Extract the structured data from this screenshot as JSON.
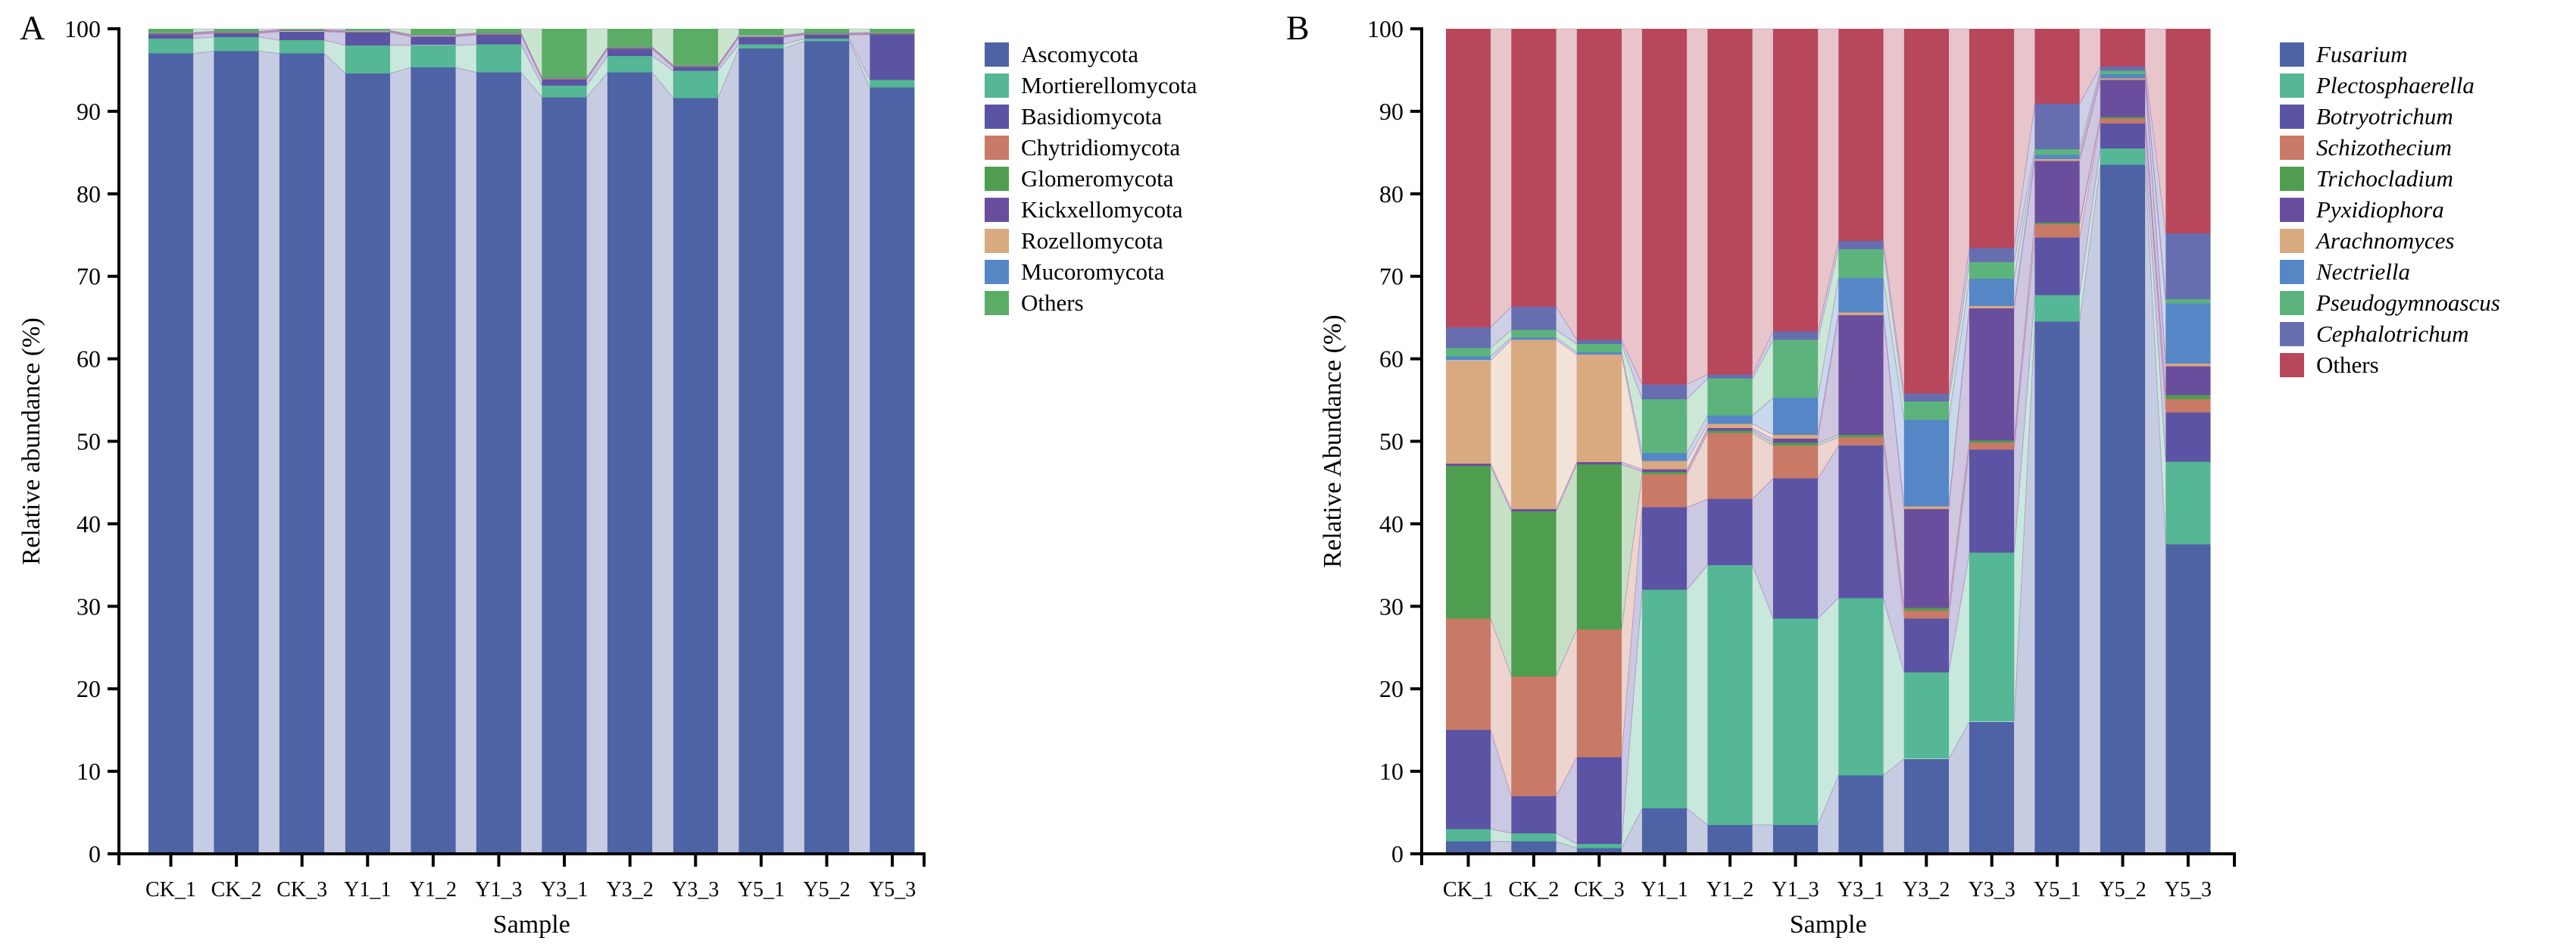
{
  "figure_title": "",
  "chart_data": [
    {
      "panel_label": "A",
      "type": "bar",
      "stacked": true,
      "alluvial_links": true,
      "xlabel": "Sample",
      "ylabel": "Relative abundance (%)",
      "ylim": [
        0,
        100
      ],
      "y_tick_labels": [
        "0",
        "10",
        "20",
        "30",
        "40",
        "50",
        "60",
        "70",
        "80",
        "90",
        "100"
      ],
      "grid": false,
      "legend_position": "right",
      "categories": [
        "CK_1",
        "CK_2",
        "CK_3",
        "Y1_1",
        "Y1_2",
        "Y1_3",
        "Y3_1",
        "Y3_2",
        "Y3_3",
        "Y5_1",
        "Y5_2",
        "Y5_3"
      ],
      "series": [
        {
          "name": "Ascomycota",
          "color": "#4D63A5",
          "italic": false,
          "values": [
            97.0,
            97.3,
            97.0,
            94.6,
            95.3,
            94.7,
            91.7,
            94.7,
            91.6,
            97.6,
            98.5,
            92.9
          ]
        },
        {
          "name": "Mortierellomycota",
          "color": "#55B795",
          "italic": false,
          "values": [
            1.8,
            1.7,
            1.6,
            3.4,
            2.7,
            3.4,
            1.4,
            2.0,
            3.3,
            0.5,
            0.3,
            0.9
          ]
        },
        {
          "name": "Basidiomycota",
          "color": "#5B54A4",
          "italic": false,
          "values": [
            0.5,
            0.45,
            1.05,
            1.55,
            1.05,
            1.15,
            0.75,
            0.85,
            0.45,
            0.85,
            0.45,
            5.5
          ]
        },
        {
          "name": "Chytridiomycota",
          "color": "#C87A67",
          "italic": false,
          "values": [
            0.05,
            0.05,
            0.05,
            0.05,
            0.05,
            0.05,
            0.05,
            0.05,
            0.05,
            0.05,
            0.05,
            0.05
          ]
        },
        {
          "name": "Glomeromycota",
          "color": "#4F9E4F",
          "italic": false,
          "values": [
            0.05,
            0.05,
            0.05,
            0.05,
            0.05,
            0.05,
            0.05,
            0.05,
            0.05,
            0.05,
            0.05,
            0.05
          ]
        },
        {
          "name": "Kickxellomycota",
          "color": "#6A4E9E",
          "italic": false,
          "values": [
            0.05,
            0.05,
            0.05,
            0.05,
            0.05,
            0.05,
            0.05,
            0.05,
            0.05,
            0.05,
            0.05,
            0.05
          ]
        },
        {
          "name": "Rozellomycota",
          "color": "#D9A97F",
          "italic": false,
          "values": [
            0.05,
            0.05,
            0.05,
            0.05,
            0.05,
            0.05,
            0.05,
            0.05,
            0.05,
            0.05,
            0.05,
            0.05
          ]
        },
        {
          "name": "Mucoromycota",
          "color": "#5587C6",
          "italic": false,
          "values": [
            0.05,
            0.05,
            0.05,
            0.05,
            0.05,
            0.05,
            0.05,
            0.05,
            0.05,
            0.05,
            0.05,
            0.05
          ]
        },
        {
          "name": "Others",
          "color": "#5BAD66",
          "italic": false,
          "values": [
            0.45,
            0.3,
            0.1,
            0.2,
            0.7,
            0.5,
            5.9,
            2.2,
            4.4,
            0.8,
            0.5,
            0.45
          ]
        }
      ]
    },
    {
      "panel_label": "B",
      "type": "bar",
      "stacked": true,
      "alluvial_links": true,
      "xlabel": "Sample",
      "ylabel": "Relative Abundance (%)",
      "ylim": [
        0,
        100
      ],
      "y_tick_labels": [
        "0",
        "10",
        "20",
        "30",
        "40",
        "50",
        "60",
        "70",
        "80",
        "90",
        "100"
      ],
      "grid": false,
      "legend_position": "right",
      "categories": [
        "CK_1",
        "CK_2",
        "CK_3",
        "Y1_1",
        "Y1_2",
        "Y1_3",
        "Y3_1",
        "Y3_2",
        "Y3_3",
        "Y5_1",
        "Y5_2",
        "Y5_3"
      ],
      "series": [
        {
          "name": "Fusarium",
          "color": "#4D63A5",
          "italic": true,
          "values": [
            1.5,
            1.5,
            0.7,
            5.5,
            3.5,
            3.5,
            9.5,
            11.5,
            16.0,
            64.5,
            83.5,
            37.5
          ]
        },
        {
          "name": "Plectosphaerella",
          "color": "#55B795",
          "italic": true,
          "values": [
            1.5,
            1.0,
            0.5,
            26.5,
            31.5,
            25.0,
            21.5,
            10.5,
            20.5,
            3.2,
            2.0,
            10.0
          ]
        },
        {
          "name": "Botryotrichum",
          "color": "#5B54A4",
          "italic": true,
          "values": [
            12.0,
            4.5,
            10.5,
            10.0,
            8.0,
            17.0,
            18.5,
            6.5,
            12.5,
            7.0,
            3.0,
            6.0
          ]
        },
        {
          "name": "Schizothecium",
          "color": "#C87A67",
          "italic": true,
          "values": [
            13.5,
            14.5,
            15.5,
            4.0,
            8.0,
            4.0,
            1.0,
            1.0,
            0.8,
            1.6,
            0.6,
            1.6
          ]
        },
        {
          "name": "Trichocladium",
          "color": "#4F9E4F",
          "italic": true,
          "values": [
            18.5,
            20.0,
            20.0,
            0.3,
            0.3,
            0.3,
            0.3,
            0.3,
            0.3,
            0.2,
            0.2,
            0.5
          ]
        },
        {
          "name": "Pyxidiophora",
          "color": "#6A4E9E",
          "italic": true,
          "values": [
            0.3,
            0.3,
            0.3,
            0.3,
            0.3,
            0.5,
            14.5,
            12.0,
            16.0,
            7.5,
            4.5,
            3.5
          ]
        },
        {
          "name": "Arachnomyces",
          "color": "#D9A97F",
          "italic": true,
          "values": [
            12.5,
            20.5,
            13.0,
            1.0,
            0.5,
            0.5,
            0.3,
            0.3,
            0.3,
            0.2,
            0.2,
            0.3
          ]
        },
        {
          "name": "Nectriella",
          "color": "#5587C6",
          "italic": true,
          "values": [
            0.5,
            0.3,
            0.3,
            1.0,
            1.0,
            4.5,
            4.2,
            10.5,
            3.3,
            0.5,
            0.5,
            7.3
          ]
        },
        {
          "name": "Pseudogymnoascus",
          "color": "#5CB47C",
          "italic": true,
          "values": [
            1.0,
            0.9,
            1.0,
            6.5,
            4.5,
            7.0,
            3.5,
            2.2,
            2.0,
            0.7,
            0.4,
            0.5
          ]
        },
        {
          "name": "Cephalotrichum",
          "color": "#666EB0",
          "italic": true,
          "values": [
            2.5,
            2.8,
            0.5,
            1.8,
            0.5,
            1.0,
            1.0,
            1.0,
            1.7,
            5.5,
            0.5,
            8.0
          ]
        },
        {
          "name": "Others",
          "color": "#B8475C",
          "italic": false,
          "values": [
            36.2,
            33.7,
            37.7,
            43.1,
            41.9,
            36.7,
            25.7,
            44.2,
            26.6,
            9.1,
            4.6,
            24.8
          ]
        }
      ]
    }
  ]
}
